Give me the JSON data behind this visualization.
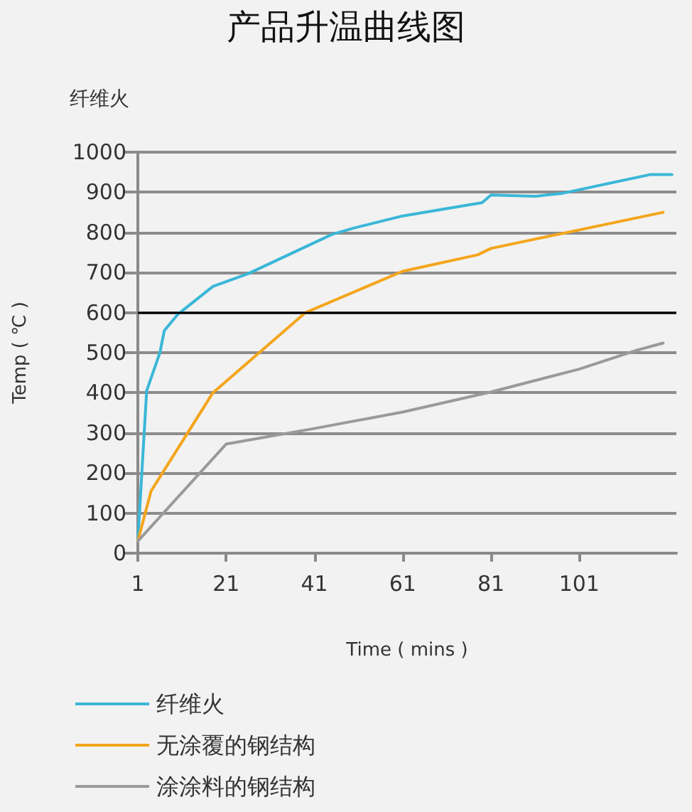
{
  "chart_data": {
    "type": "line",
    "title": "产品升温曲线图",
    "subtitle": "纤维火",
    "xlabel": "Time ( mins )",
    "ylabel": "Temp ( ℃ )",
    "xlim": [
      1,
      123
    ],
    "xticks": [
      1,
      21,
      41,
      61,
      81,
      101
    ],
    "ylim": [
      0,
      1000
    ],
    "yticks": [
      0,
      100,
      200,
      300,
      400,
      500,
      600,
      700,
      800,
      900,
      1000
    ],
    "grid": "y",
    "legend": "bottom",
    "marker": "none",
    "line_style": "solid",
    "ref_lines": [
      {
        "axis": "y",
        "value": 600,
        "color": "#000000"
      }
    ],
    "series": [
      {
        "name": "纤维火",
        "color": "#3ab7d8",
        "x": [
          1,
          3,
          6,
          7,
          10,
          18,
          26,
          45,
          50,
          61,
          79,
          81,
          91,
          97,
          117,
          122
        ],
        "values": [
          30,
          405,
          500,
          555,
          595,
          665,
          697,
          795,
          811,
          841,
          874,
          893,
          890,
          897,
          944,
          944
        ]
      },
      {
        "name": "无涂覆的钢结构",
        "color": "#f4a51c",
        "x": [
          1,
          4,
          18,
          39,
          61,
          78,
          81,
          120
        ],
        "values": [
          30,
          155,
          400,
          600,
          703,
          744,
          760,
          850
        ]
      },
      {
        "name": "涂涂料的钢结构",
        "color": "#9a9a9a",
        "x": [
          1,
          21,
          41,
          61,
          81,
          101,
          114,
          120
        ],
        "values": [
          30,
          272,
          311,
          352,
          402,
          459,
          506,
          524
        ]
      }
    ]
  }
}
